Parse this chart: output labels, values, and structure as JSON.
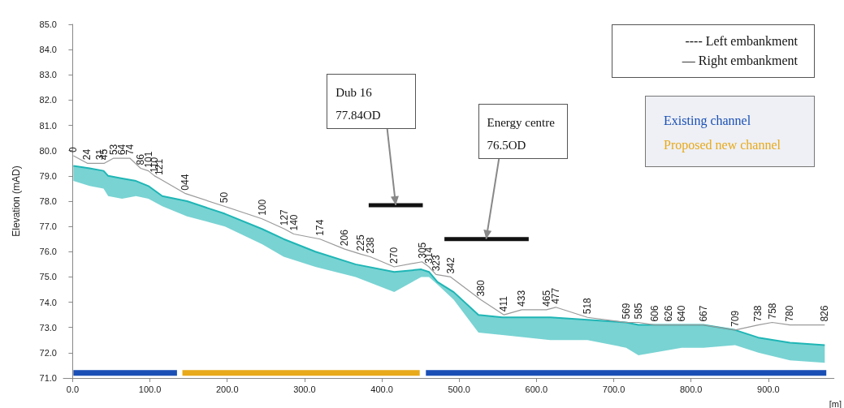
{
  "chart_data": {
    "type": "line",
    "xlabel": "[m]",
    "ylabel": "Elevation (mAD)",
    "xlim": [
      -12,
      985
    ],
    "ylim": [
      71,
      85
    ],
    "xticks": [
      {
        "value": 0,
        "label": "0.0"
      },
      {
        "value": 100,
        "label": "100.0"
      },
      {
        "value": 200,
        "label": "200.0"
      },
      {
        "value": 300,
        "label": "300.0"
      },
      {
        "value": 400,
        "label": "400.0"
      },
      {
        "value": 500,
        "label": "500.0"
      },
      {
        "value": 600,
        "label": "600.0"
      },
      {
        "value": 700,
        "label": "700.0"
      },
      {
        "value": 800,
        "label": "800.0"
      },
      {
        "value": 900,
        "label": "900.0"
      }
    ],
    "yticks": [
      {
        "value": 71,
        "label": "71.0"
      },
      {
        "value": 72,
        "label": "72.0"
      },
      {
        "value": 73,
        "label": "73.0"
      },
      {
        "value": 74,
        "label": "74.0"
      },
      {
        "value": 75,
        "label": "75.0"
      },
      {
        "value": 76,
        "label": "76.0"
      },
      {
        "value": 77,
        "label": "77.0"
      },
      {
        "value": 78,
        "label": "78.0"
      },
      {
        "value": 79,
        "label": "79.0"
      },
      {
        "value": 80,
        "label": "80.0"
      },
      {
        "value": 81,
        "label": "81.0"
      },
      {
        "value": 82,
        "label": "82.0"
      },
      {
        "value": 83,
        "label": "83.0"
      },
      {
        "value": 84,
        "label": "84.0"
      },
      {
        "value": 85,
        "label": "85.0"
      }
    ],
    "grid": false,
    "legend": "top right",
    "marker": "none",
    "line_style": "solid",
    "series": [
      {
        "color": "#1fb5b5",
        "x": [
          1,
          22,
          40,
          46,
          64,
          82,
          98,
          116,
          148,
          197,
          245,
          273,
          314,
          366,
          416,
          451,
          461,
          472,
          493,
          525,
          556,
          618,
          666,
          716,
          732,
          788,
          816,
          857,
          887,
          928,
          973
        ],
        "values": [
          79.4,
          79.3,
          79.2,
          79.0,
          78.9,
          78.8,
          78.6,
          78.2,
          78.0,
          77.5,
          76.9,
          76.5,
          76.0,
          75.5,
          75.2,
          75.3,
          75.2,
          74.8,
          74.4,
          73.5,
          73.4,
          73.4,
          73.3,
          73.2,
          73.1,
          73.1,
          73.1,
          72.9,
          72.6,
          72.4,
          72.3
        ],
        "lower": [
          78.8,
          78.6,
          78.5,
          78.2,
          78.1,
          78.2,
          78.1,
          77.8,
          77.4,
          77.0,
          76.3,
          75.8,
          75.4,
          75.0,
          74.4,
          75.0,
          75.0,
          74.7,
          74.1,
          72.8,
          72.7,
          72.5,
          72.5,
          72.2,
          71.9,
          72.2,
          72.2,
          72.3,
          72.0,
          71.7,
          71.6
        ],
        "upper": [
          79.4,
          79.3,
          79.2,
          79.0,
          78.9,
          78.8,
          78.6,
          78.2,
          78.0,
          77.5,
          76.9,
          76.5,
          76.0,
          75.5,
          75.2,
          75.3,
          75.2,
          74.8,
          74.4,
          73.5,
          73.4,
          73.4,
          73.3,
          73.2,
          73.1,
          73.1,
          73.1,
          72.9,
          72.6,
          72.4,
          72.3
        ]
      },
      {
        "color": "#9a9a9a",
        "x": [
          1,
          19,
          35,
          41,
          53,
          64,
          74,
          88,
          98,
          106,
          112,
          146,
          196,
          245,
          274,
          286,
          320,
          352,
          373,
          385,
          416,
          452,
          461,
          470,
          489,
          528,
          558,
          581,
          613,
          625,
          666,
          716,
          732,
          753,
          771,
          788,
          816,
          857,
          887,
          905,
          928,
          973
        ],
        "values": [
          79.8,
          79.5,
          79.5,
          79.5,
          79.7,
          79.7,
          79.7,
          79.3,
          79.2,
          79.0,
          78.9,
          78.3,
          77.8,
          77.3,
          76.9,
          76.7,
          76.5,
          76.1,
          75.9,
          75.8,
          75.4,
          75.6,
          75.4,
          75.1,
          75.0,
          74.1,
          73.5,
          73.7,
          73.7,
          73.8,
          73.4,
          73.2,
          73.2,
          73.1,
          73.1,
          73.1,
          73.1,
          72.9,
          73.1,
          73.2,
          73.1,
          73.1
        ]
      },
      {
        "color": "#111111",
        "x": [
          383,
          453
        ],
        "values": [
          77.84,
          77.84
        ]
      },
      {
        "color": "#111111",
        "x": [
          481,
          590
        ],
        "values": [
          76.5,
          76.5
        ]
      },
      {
        "name": "Existing channel",
        "color": "#1a4fb5",
        "x": [
          1,
          135,
          140,
          457,
          975
        ],
        "values": [
          71.2,
          71.2,
          null,
          71.2,
          71.2
        ]
      },
      {
        "name": "Proposed new channel",
        "color": "#e8a91a",
        "x": [
          142,
          449
        ],
        "values": [
          71.2,
          71.2
        ]
      }
    ],
    "annotations": [
      {
        "text": "Dub 16\n77.84OD",
        "x": 418,
        "y": 77.84
      },
      {
        "text": "Energy centre\n76.5OD",
        "x": 535,
        "y": 76.5
      },
      {
        "text": "0",
        "x": 1,
        "y": 79.8
      },
      {
        "text": "24",
        "x": 19,
        "y": 79.5
      },
      {
        "text": "31",
        "x": 35,
        "y": 79.5
      },
      {
        "text": "45",
        "x": 41,
        "y": 79.5
      },
      {
        "text": "53",
        "x": 53,
        "y": 79.7
      },
      {
        "text": "64",
        "x": 64,
        "y": 79.7
      },
      {
        "text": "74",
        "x": 74,
        "y": 79.7
      },
      {
        "text": "86",
        "x": 88,
        "y": 79.3
      },
      {
        "text": "101",
        "x": 98,
        "y": 79.2
      },
      {
        "text": "110",
        "x": 106,
        "y": 79.0
      },
      {
        "text": "121",
        "x": 112,
        "y": 78.9
      },
      {
        "text": "044",
        "x": 146,
        "y": 78.3
      },
      {
        "text": "50",
        "x": 196,
        "y": 77.8
      },
      {
        "text": "100",
        "x": 245,
        "y": 77.3
      },
      {
        "text": "127",
        "x": 274,
        "y": 76.9
      },
      {
        "text": "140",
        "x": 286,
        "y": 76.7
      },
      {
        "text": "174",
        "x": 320,
        "y": 76.5
      },
      {
        "text": "206",
        "x": 352,
        "y": 76.1
      },
      {
        "text": "225",
        "x": 373,
        "y": 75.9
      },
      {
        "text": "238",
        "x": 385,
        "y": 75.8
      },
      {
        "text": "270",
        "x": 416,
        "y": 75.4
      },
      {
        "text": "305",
        "x": 452,
        "y": 75.6
      },
      {
        "text": "314",
        "x": 461,
        "y": 75.4
      },
      {
        "text": "323",
        "x": 470,
        "y": 75.1
      },
      {
        "text": "342",
        "x": 489,
        "y": 75.0
      },
      {
        "text": "380",
        "x": 528,
        "y": 74.1
      },
      {
        "text": "411",
        "x": 558,
        "y": 73.5
      },
      {
        "text": "433",
        "x": 581,
        "y": 73.7
      },
      {
        "text": "465",
        "x": 613,
        "y": 73.7
      },
      {
        "text": "477",
        "x": 625,
        "y": 73.8
      },
      {
        "text": "518",
        "x": 666,
        "y": 73.4
      },
      {
        "text": "569",
        "x": 716,
        "y": 73.2
      },
      {
        "text": "585",
        "x": 732,
        "y": 73.2
      },
      {
        "text": "606",
        "x": 753,
        "y": 73.1
      },
      {
        "text": "626",
        "x": 771,
        "y": 73.1
      },
      {
        "text": "640",
        "x": 788,
        "y": 73.1
      },
      {
        "text": "667",
        "x": 816,
        "y": 73.1
      },
      {
        "text": "709",
        "x": 857,
        "y": 72.9
      },
      {
        "text": "738",
        "x": 887,
        "y": 73.1
      },
      {
        "text": "758",
        "x": 905,
        "y": 73.2
      },
      {
        "text": "780",
        "x": 928,
        "y": 73.1
      },
      {
        "text": "826",
        "x": 973,
        "y": 73.1
      },
      "---- Left embankment",
      "— Right embankment"
    ]
  }
}
